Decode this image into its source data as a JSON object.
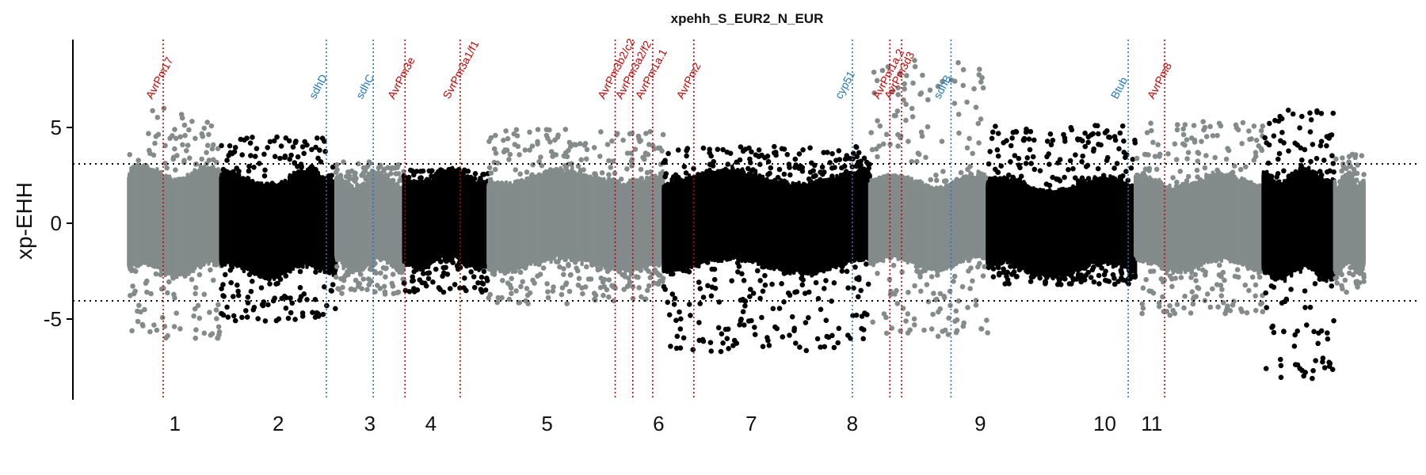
{
  "chart_data": {
    "type": "scatter",
    "subtype": "manhattan",
    "title": "xpehh_S_EUR2_N_EUR",
    "xlabel": "",
    "ylabel": "xp-EHH",
    "ylim": [
      -9,
      9
    ],
    "yticks": [
      -5,
      0,
      5
    ],
    "ytick_labels": [
      "-5",
      "0",
      "5"
    ],
    "thresholds": [
      3.1,
      -4.05
    ],
    "grid": false,
    "colors": {
      "odd": "#838b8b",
      "even": "#000000",
      "avr": "#cc0000",
      "fungicide": "#1f77c8"
    },
    "chromosomes": [
      {
        "label": "1",
        "start": 0,
        "end": 780,
        "color": "#838b8b",
        "band": [
          -2.2,
          2.4
        ],
        "max": 6.0,
        "min": -6.0
      },
      {
        "label": "2",
        "start": 780,
        "end": 1760,
        "color": "#000000",
        "band": [
          -2.3,
          2.1
        ],
        "max": 4.5,
        "min": -5.1
      },
      {
        "label": "3",
        "start": 1760,
        "end": 2340,
        "color": "#838b8b",
        "band": [
          -2.0,
          2.0
        ],
        "max": 3.2,
        "min": -3.7
      },
      {
        "label": "4",
        "start": 2340,
        "end": 3060,
        "color": "#000000",
        "band": [
          -1.8,
          2.2
        ],
        "max": 2.8,
        "min": -3.6
      },
      {
        "label": "5",
        "start": 3060,
        "end": 4550,
        "color": "#838b8b",
        "band": [
          -1.9,
          2.2
        ],
        "max": 4.9,
        "min": -4.2
      },
      {
        "label": "6",
        "start": 4550,
        "end": 6310,
        "color": "#000000",
        "band": [
          -2.0,
          2.2
        ],
        "max": 4.0,
        "min": -6.7
      },
      {
        "label": "7",
        "start": 6310,
        "end": 7310,
        "color": "#838b8b",
        "band": [
          -1.9,
          2.0
        ],
        "max": 8.5,
        "min": -5.9
      },
      {
        "label": "8",
        "start": 7310,
        "end": 8570,
        "color": "#000000",
        "band": [
          -2.2,
          1.8
        ],
        "max": 5.1,
        "min": -3.2
      },
      {
        "label": "9",
        "start": 8570,
        "end": 9660,
        "color": "#838b8b",
        "band": [
          -2.0,
          2.0
        ],
        "max": 5.3,
        "min": -4.8
      },
      {
        "label": "10",
        "start": 9660,
        "end": 10270,
        "color": "#000000",
        "band": [
          -2.4,
          2.3
        ],
        "max": 5.9,
        "min": -8.1
      },
      {
        "label": "11",
        "start": 10270,
        "end": 10520,
        "color": "#838b8b",
        "band": [
          -2.1,
          2.1
        ],
        "max": 3.6,
        "min": -3.6
      }
    ],
    "xticks": [
      {
        "label": "1",
        "x": 390
      },
      {
        "label": "2",
        "x": 1270
      },
      {
        "label": "3",
        "x": 2050
      },
      {
        "label": "4",
        "x": 2570
      },
      {
        "label": "5",
        "x": 3560
      },
      {
        "label": "6",
        "x": 4510
      },
      {
        "label": "7",
        "x": 5300
      },
      {
        "label": "8",
        "x": 6160
      },
      {
        "label": "9",
        "x": 7250
      },
      {
        "label": "10",
        "x": 8310
      },
      {
        "label": "11",
        "x": 8710
      }
    ],
    "genes": [
      {
        "name": "AvrPm17",
        "x": 290,
        "type": "avr"
      },
      {
        "name": "sdhD",
        "x": 1680,
        "type": "fungicide"
      },
      {
        "name": "sdhC",
        "x": 2080,
        "type": "fungicide"
      },
      {
        "name": "AvrPm3e",
        "x": 2350,
        "type": "avr"
      },
      {
        "name": "SvrPm3a1/f1",
        "x": 2820,
        "type": "avr"
      },
      {
        "name": "AvrPm3b2/c2",
        "x": 4140,
        "type": "avr"
      },
      {
        "name": "AvrPm3a2/f2",
        "x": 4290,
        "type": "avr"
      },
      {
        "name": "AvrPm1a.1",
        "x": 4460,
        "type": "avr"
      },
      {
        "name": "AvrPm2",
        "x": 4810,
        "type": "avr"
      },
      {
        "name": "cyp51",
        "x": 6160,
        "type": "fungicide"
      },
      {
        "name": "AvrPm1a.2",
        "x": 6480,
        "type": "avr"
      },
      {
        "name": "AvrPm3d3",
        "x": 6580,
        "type": "avr"
      },
      {
        "name": "sdhB",
        "x": 7000,
        "type": "fungicide"
      },
      {
        "name": "Btub",
        "x": 8510,
        "type": "fungicide"
      },
      {
        "name": "AvrPm8",
        "x": 8820,
        "type": "avr"
      }
    ]
  }
}
